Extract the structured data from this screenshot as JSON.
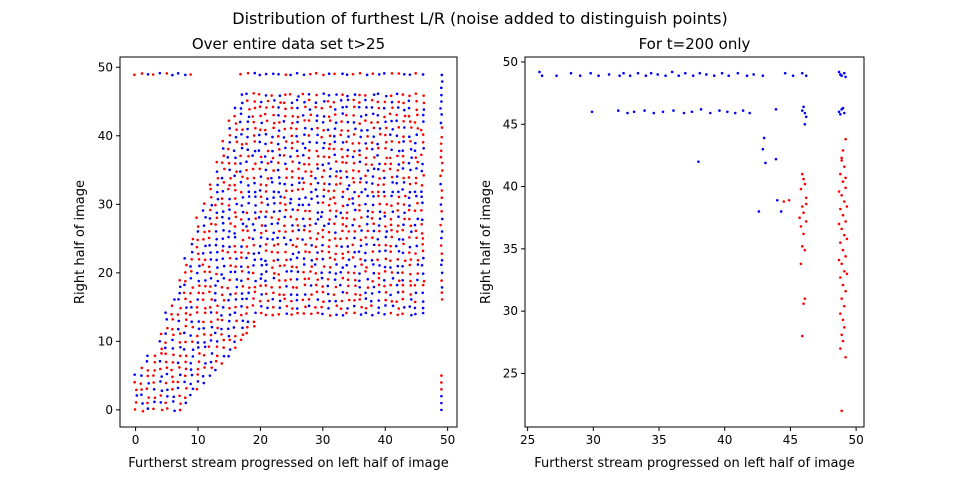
{
  "figure": {
    "suptitle": "Distribution of furthest L/R (noise added to distinguish points)"
  },
  "colors": {
    "series_a": "#0000ff",
    "series_b": "#ff0000"
  },
  "chart_data": [
    {
      "type": "scatter",
      "title": "Over entire data set t>25",
      "xlabel": "Furtherst stream progressed on left half of image",
      "ylabel": "Right half of image",
      "xlim": [
        -2.5,
        51.5
      ],
      "ylim": [
        -2.5,
        51.5
      ],
      "xticks": [
        0,
        10,
        20,
        30,
        40,
        50
      ],
      "yticks": [
        0,
        10,
        20,
        30,
        40,
        50
      ],
      "grid": false,
      "pattern": {
        "description": "integer lattice points (x,y) with 0<=x<=46, lower bound y>=x-7 and y>=14 for x>=20, upper bound rising from ~5 at x=0 to 46 at x~17; additional points at y=49 and x=49",
        "series": [
          "blue",
          "red"
        ]
      }
    },
    {
      "type": "scatter",
      "title": "For t=200 only",
      "xlabel": "Furtherst stream progressed on left half of image",
      "ylabel": "Right half of image",
      "xlim": [
        24.8,
        50.6
      ],
      "ylim": [
        20.7,
        50.4
      ],
      "xticks": [
        25,
        30,
        35,
        40,
        45,
        50
      ],
      "yticks": [
        25,
        30,
        35,
        40,
        45,
        50
      ],
      "grid": false,
      "series": [
        {
          "color": "blue",
          "points": [
            [
              25.9,
              49.2
            ],
            [
              26.1,
              48.9
            ],
            [
              27.2,
              48.9
            ],
            [
              28.3,
              49.1
            ],
            [
              29.0,
              48.9
            ],
            [
              29.8,
              49.1
            ],
            [
              30.4,
              48.9
            ],
            [
              31.2,
              49.0
            ],
            [
              32.0,
              48.9
            ],
            [
              32.3,
              49.1
            ],
            [
              32.8,
              48.9
            ],
            [
              33.4,
              49.1
            ],
            [
              34.0,
              48.9
            ],
            [
              34.4,
              49.1
            ],
            [
              34.9,
              49.0
            ],
            [
              35.5,
              48.9
            ],
            [
              36.0,
              49.2
            ],
            [
              36.5,
              48.9
            ],
            [
              37.0,
              49.1
            ],
            [
              37.6,
              48.9
            ],
            [
              38.1,
              49.1
            ],
            [
              38.6,
              49.0
            ],
            [
              39.2,
              48.9
            ],
            [
              39.8,
              49.1
            ],
            [
              40.3,
              48.9
            ],
            [
              41.0,
              49.1
            ],
            [
              41.7,
              48.9
            ],
            [
              42.2,
              49.0
            ],
            [
              42.9,
              48.9
            ],
            [
              44.6,
              49.1
            ],
            [
              45.2,
              48.9
            ],
            [
              45.9,
              49.1
            ],
            [
              46.2,
              48.9
            ],
            [
              48.7,
              49.2
            ],
            [
              48.9,
              48.9
            ],
            [
              49.1,
              49.1
            ],
            [
              49.2,
              48.8
            ],
            [
              48.8,
              49.0
            ],
            [
              29.9,
              46.0
            ],
            [
              31.9,
              46.1
            ],
            [
              32.6,
              45.9
            ],
            [
              33.1,
              46.0
            ],
            [
              33.9,
              46.1
            ],
            [
              34.6,
              45.9
            ],
            [
              35.3,
              46.0
            ],
            [
              36.1,
              46.1
            ],
            [
              36.9,
              45.9
            ],
            [
              37.5,
              46.0
            ],
            [
              38.2,
              46.2
            ],
            [
              38.9,
              45.9
            ],
            [
              39.6,
              46.1
            ],
            [
              40.2,
              46.0
            ],
            [
              40.8,
              45.9
            ],
            [
              41.4,
              46.1
            ],
            [
              41.9,
              45.9
            ],
            [
              43.9,
              46.2
            ],
            [
              45.9,
              46.1
            ],
            [
              46.1,
              45.9
            ],
            [
              46.0,
              46.4
            ],
            [
              46.2,
              45.6
            ],
            [
              46.1,
              45.0
            ],
            [
              48.7,
              46.0
            ],
            [
              48.9,
              46.2
            ],
            [
              49.1,
              45.9
            ],
            [
              49.0,
              46.3
            ],
            [
              48.8,
              45.8
            ],
            [
              43.0,
              43.9
            ],
            [
              42.9,
              43.0
            ],
            [
              43.1,
              41.9
            ],
            [
              38.0,
              42.0
            ],
            [
              43.9,
              42.2
            ],
            [
              44.0,
              38.9
            ],
            [
              42.6,
              38.0
            ],
            [
              44.3,
              38.0
            ]
          ]
        },
        {
          "color": "red",
          "points": [
            [
              49.2,
              43.8
            ],
            [
              49.0,
              42.9
            ],
            [
              48.9,
              42.1
            ],
            [
              49.1,
              41.6
            ],
            [
              48.8,
              41.0
            ],
            [
              49.0,
              40.4
            ],
            [
              49.2,
              39.9
            ],
            [
              48.9,
              39.3
            ],
            [
              49.1,
              38.8
            ],
            [
              48.8,
              38.2
            ],
            [
              49.0,
              37.7
            ],
            [
              49.2,
              37.2
            ],
            [
              48.9,
              36.6
            ],
            [
              49.1,
              36.1
            ],
            [
              48.8,
              35.5
            ],
            [
              49.0,
              34.9
            ],
            [
              49.2,
              34.4
            ],
            [
              48.9,
              33.8
            ],
            [
              49.1,
              33.2
            ],
            [
              48.8,
              32.7
            ],
            [
              49.0,
              32.1
            ],
            [
              49.2,
              31.6
            ],
            [
              48.9,
              31.0
            ],
            [
              49.1,
              30.4
            ],
            [
              48.8,
              29.8
            ],
            [
              49.0,
              29.3
            ],
            [
              49.1,
              28.7
            ],
            [
              48.9,
              28.1
            ],
            [
              49.0,
              27.6
            ],
            [
              48.8,
              27.0
            ],
            [
              49.2,
              26.3
            ],
            [
              48.9,
              22.0
            ],
            [
              48.9,
              42.3
            ],
            [
              49.2,
              40.7
            ],
            [
              48.7,
              39.6
            ],
            [
              49.3,
              38.4
            ],
            [
              48.7,
              37.0
            ],
            [
              49.3,
              35.8
            ],
            [
              48.7,
              34.1
            ],
            [
              49.3,
              33.0
            ],
            [
              45.9,
              41.0
            ],
            [
              46.1,
              40.2
            ],
            [
              45.8,
              39.8
            ],
            [
              46.2,
              39.1
            ],
            [
              45.9,
              38.4
            ],
            [
              46.0,
              37.9
            ],
            [
              46.2,
              37.2
            ],
            [
              45.8,
              36.8
            ],
            [
              46.0,
              36.2
            ],
            [
              45.9,
              35.2
            ],
            [
              46.1,
              34.9
            ],
            [
              45.8,
              33.8
            ],
            [
              46.1,
              31.0
            ],
            [
              46.0,
              30.6
            ],
            [
              45.9,
              28.0
            ],
            [
              46.0,
              40.6
            ],
            [
              46.2,
              38.6
            ],
            [
              45.7,
              37.5
            ],
            [
              44.5,
              38.8
            ],
            [
              44.9,
              38.9
            ]
          ]
        }
      ]
    }
  ]
}
